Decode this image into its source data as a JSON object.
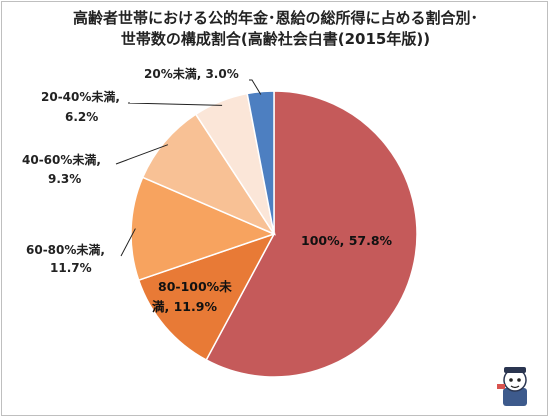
{
  "chart_data": {
    "type": "pie",
    "title_line1": "高齢者世帯における公的年金･恩給の総所得に占める割合別･",
    "title_line2": "世帯数の構成割合(高齢社会白書(2015年版))",
    "slices": [
      {
        "category": "100%",
        "value": 57.8,
        "label": "100%, 57.8%",
        "color": "#c55a5a"
      },
      {
        "category": "80-100%未満",
        "value": 11.9,
        "label_lines": [
          "80-100%未",
          "満, 11.9%"
        ],
        "color": "#e87a36"
      },
      {
        "category": "60-80%未満",
        "value": 11.7,
        "label_lines": [
          "60-80%未満,",
          "11.7%"
        ],
        "color": "#f7a35f"
      },
      {
        "category": "40-60%未満",
        "value": 9.3,
        "label_lines": [
          "40-60%未満,",
          "9.3%"
        ],
        "color": "#f8c195"
      },
      {
        "category": "20-40%未満",
        "value": 6.2,
        "label_lines": [
          "20-40%未満,",
          "6.2%"
        ],
        "color": "#fbe6d8"
      },
      {
        "category": "20%未満",
        "value": 3.0,
        "label_lines": [
          "20%未満, 3.0%"
        ],
        "color": "#4d7fc1"
      }
    ]
  }
}
